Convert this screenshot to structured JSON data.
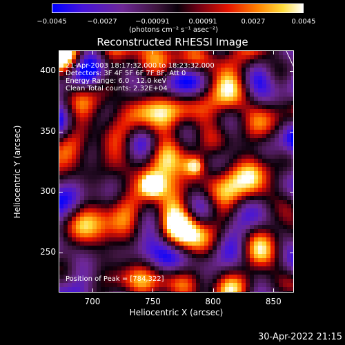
{
  "colorbar": {
    "ticks": [
      "−0.0045",
      "−0.0027",
      "−0.00091",
      "0.00091",
      "0.0027",
      "0.0045"
    ],
    "unit_label": "(photons cm⁻² s⁻¹ asec⁻²)"
  },
  "plot": {
    "title": "Reconstructed RHESSI Image",
    "info_lines": [
      "21-Apr-2003 18:17:32.000 to 18:23:32.000",
      "Detectors: 3F 4F 5F 6F 7F 8F, Att 0",
      "Energy Range: 6.0 - 12.0 keV",
      "Clean     Total counts: 2.32E+04"
    ],
    "peak_label": "Position of Peak = [784,322]"
  },
  "axes": {
    "xlabel": "Heliocentric X (arcsec)",
    "ylabel": "Heliocentric Y (arcsec)"
  },
  "footer": {
    "timestamp": "30-Apr-2022 21:15"
  },
  "chart_data": {
    "type": "heatmap",
    "title": "Reconstructed RHESSI Image",
    "xlabel": "Heliocentric X (arcsec)",
    "ylabel": "Heliocentric Y (arcsec)",
    "xlim": [
      672,
      867
    ],
    "ylim": [
      217,
      417
    ],
    "x_ticks": [
      700,
      750,
      800,
      850
    ],
    "y_ticks": [
      250,
      300,
      350,
      400
    ],
    "colorbar_range": [
      -0.0045,
      0.0045
    ],
    "colorbar_ticks": [
      -0.0045,
      -0.0027,
      -0.00091,
      0.00091,
      0.0027,
      0.0045
    ],
    "peak_position": [
      784,
      322
    ],
    "sources": [
      {
        "x": 784,
        "y": 322,
        "relative_intensity": 1.0
      },
      {
        "x": 749,
        "y": 306,
        "relative_intensity": 0.95
      }
    ]
  }
}
